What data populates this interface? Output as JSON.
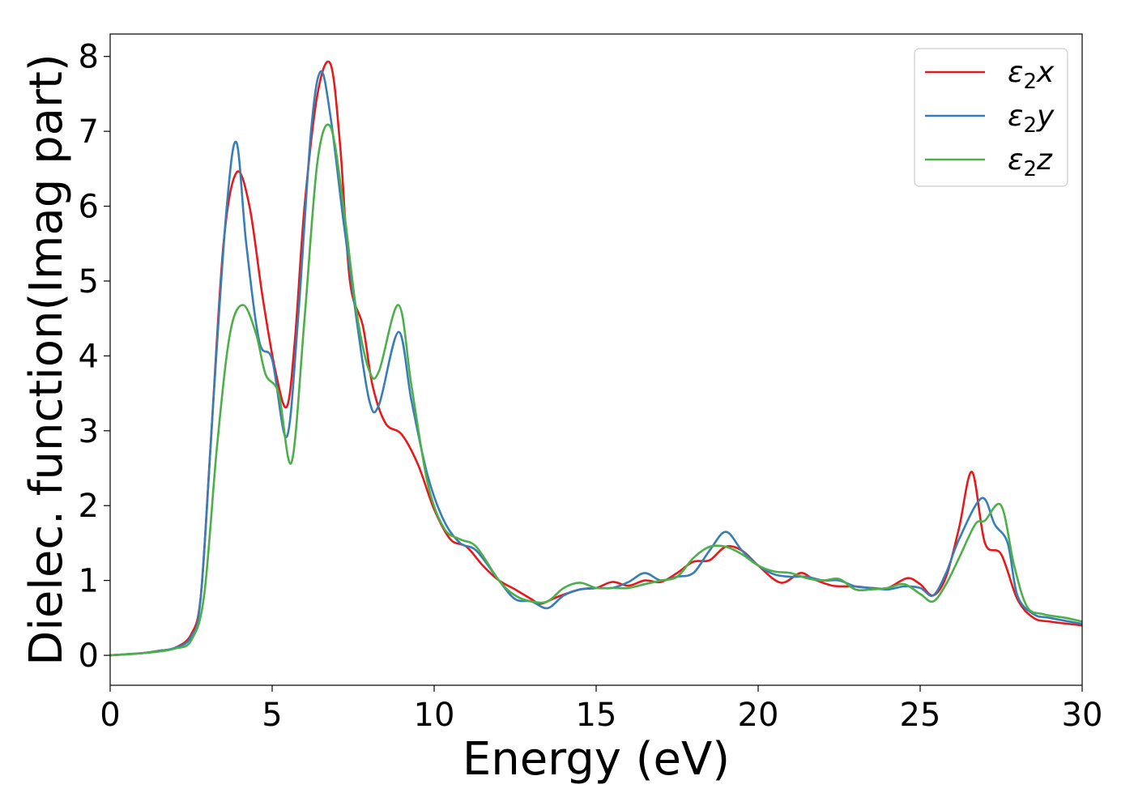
{
  "chart_data": {
    "type": "line",
    "title": "",
    "xlabel": "Energy (eV)",
    "ylabel": "Dielec. function(Imag part)",
    "xlim": [
      0,
      30
    ],
    "ylim": [
      -0.4,
      8.3
    ],
    "xticks": [
      0,
      5,
      10,
      15,
      20,
      25,
      30
    ],
    "yticks": [
      0,
      1,
      2,
      3,
      4,
      5,
      6,
      7,
      8
    ],
    "grid": false,
    "legend_position": "top-right",
    "series": [
      {
        "name": "ε₂x",
        "label_base": "ε",
        "label_sub": "2",
        "label_suffix": "x",
        "color": "#e41a1c",
        "points": [
          [
            0,
            0
          ],
          [
            1,
            0.03
          ],
          [
            1.5,
            0.06
          ],
          [
            2,
            0.1
          ],
          [
            2.5,
            0.28
          ],
          [
            2.8,
            0.8
          ],
          [
            3.1,
            2.8
          ],
          [
            3.5,
            5.5
          ],
          [
            3.9,
            6.45
          ],
          [
            4.3,
            6.0
          ],
          [
            4.7,
            4.8
          ],
          [
            5.1,
            3.8
          ],
          [
            5.45,
            3.32
          ],
          [
            5.7,
            4.2
          ],
          [
            6.0,
            6.0
          ],
          [
            6.4,
            7.5
          ],
          [
            6.8,
            7.9
          ],
          [
            7.1,
            6.8
          ],
          [
            7.4,
            5.0
          ],
          [
            7.8,
            4.4
          ],
          [
            8.1,
            3.6
          ],
          [
            8.5,
            3.1
          ],
          [
            9.0,
            2.95
          ],
          [
            9.5,
            2.55
          ],
          [
            10.0,
            1.95
          ],
          [
            10.5,
            1.55
          ],
          [
            11.0,
            1.45
          ],
          [
            11.5,
            1.2
          ],
          [
            12.0,
            1.0
          ],
          [
            12.5,
            0.88
          ],
          [
            13.0,
            0.75
          ],
          [
            13.3,
            0.69
          ],
          [
            13.8,
            0.78
          ],
          [
            14.5,
            0.88
          ],
          [
            15.0,
            0.9
          ],
          [
            15.5,
            0.98
          ],
          [
            16.0,
            0.93
          ],
          [
            16.5,
            1.0
          ],
          [
            17.0,
            0.98
          ],
          [
            17.5,
            1.1
          ],
          [
            18.0,
            1.25
          ],
          [
            18.5,
            1.27
          ],
          [
            19.0,
            1.45
          ],
          [
            19.5,
            1.4
          ],
          [
            20.0,
            1.2
          ],
          [
            20.7,
            0.97
          ],
          [
            21.3,
            1.1
          ],
          [
            21.7,
            1.02
          ],
          [
            22.3,
            0.93
          ],
          [
            23.0,
            0.92
          ],
          [
            23.5,
            0.9
          ],
          [
            24.0,
            0.9
          ],
          [
            24.6,
            1.03
          ],
          [
            25.0,
            0.95
          ],
          [
            25.4,
            0.8
          ],
          [
            25.8,
            1.05
          ],
          [
            26.2,
            1.7
          ],
          [
            26.6,
            2.45
          ],
          [
            27.0,
            1.5
          ],
          [
            27.5,
            1.35
          ],
          [
            28.0,
            0.75
          ],
          [
            28.5,
            0.5
          ],
          [
            29.0,
            0.45
          ],
          [
            30.0,
            0.4
          ]
        ]
      },
      {
        "name": "ε₂y",
        "label_base": "ε",
        "label_sub": "2",
        "label_suffix": "y",
        "color": "#377eb8",
        "points": [
          [
            0,
            0
          ],
          [
            1,
            0.03
          ],
          [
            1.5,
            0.06
          ],
          [
            2,
            0.1
          ],
          [
            2.5,
            0.25
          ],
          [
            2.8,
            0.8
          ],
          [
            3.2,
            3.5
          ],
          [
            3.6,
            6.0
          ],
          [
            3.9,
            6.85
          ],
          [
            4.2,
            5.5
          ],
          [
            4.6,
            4.2
          ],
          [
            5.0,
            3.95
          ],
          [
            5.45,
            2.92
          ],
          [
            5.8,
            4.5
          ],
          [
            6.2,
            7.0
          ],
          [
            6.5,
            7.8
          ],
          [
            6.8,
            7.2
          ],
          [
            7.2,
            5.8
          ],
          [
            7.6,
            4.5
          ],
          [
            8.0,
            3.4
          ],
          [
            8.3,
            3.35
          ],
          [
            8.9,
            4.32
          ],
          [
            9.3,
            3.4
          ],
          [
            9.8,
            2.4
          ],
          [
            10.3,
            1.8
          ],
          [
            10.8,
            1.5
          ],
          [
            11.3,
            1.4
          ],
          [
            12.0,
            1.0
          ],
          [
            12.5,
            0.75
          ],
          [
            13.0,
            0.72
          ],
          [
            13.5,
            0.63
          ],
          [
            14.0,
            0.8
          ],
          [
            14.5,
            0.88
          ],
          [
            15.0,
            0.9
          ],
          [
            15.5,
            0.9
          ],
          [
            16.0,
            0.98
          ],
          [
            16.5,
            1.1
          ],
          [
            17.0,
            1.0
          ],
          [
            17.5,
            1.05
          ],
          [
            18.0,
            1.1
          ],
          [
            18.5,
            1.4
          ],
          [
            19.0,
            1.65
          ],
          [
            19.5,
            1.4
          ],
          [
            20.0,
            1.2
          ],
          [
            20.5,
            1.08
          ],
          [
            21.0,
            1.05
          ],
          [
            21.5,
            1.05
          ],
          [
            22.0,
            1.0
          ],
          [
            22.5,
            1.0
          ],
          [
            23.0,
            0.92
          ],
          [
            23.5,
            0.9
          ],
          [
            24.0,
            0.88
          ],
          [
            24.5,
            0.92
          ],
          [
            25.0,
            0.9
          ],
          [
            25.4,
            0.8
          ],
          [
            25.8,
            1.1
          ],
          [
            26.2,
            1.55
          ],
          [
            26.9,
            2.1
          ],
          [
            27.3,
            1.75
          ],
          [
            27.7,
            1.5
          ],
          [
            28.0,
            0.8
          ],
          [
            28.5,
            0.55
          ],
          [
            29.0,
            0.5
          ],
          [
            30.0,
            0.42
          ]
        ]
      },
      {
        "name": "ε₂z",
        "label_base": "ε",
        "label_sub": "2",
        "label_suffix": "z",
        "color": "#4daf4a",
        "points": [
          [
            0,
            0
          ],
          [
            1,
            0.03
          ],
          [
            1.5,
            0.05
          ],
          [
            2,
            0.09
          ],
          [
            2.5,
            0.2
          ],
          [
            2.9,
            0.8
          ],
          [
            3.3,
            2.8
          ],
          [
            3.7,
            4.3
          ],
          [
            4.1,
            4.68
          ],
          [
            4.5,
            4.3
          ],
          [
            4.8,
            3.75
          ],
          [
            5.2,
            3.5
          ],
          [
            5.6,
            2.58
          ],
          [
            6.0,
            4.5
          ],
          [
            6.4,
            6.6
          ],
          [
            6.8,
            7.06
          ],
          [
            7.2,
            6.0
          ],
          [
            7.6,
            4.6
          ],
          [
            8.0,
            3.8
          ],
          [
            8.3,
            3.8
          ],
          [
            8.9,
            4.68
          ],
          [
            9.3,
            3.6
          ],
          [
            9.8,
            2.3
          ],
          [
            10.3,
            1.7
          ],
          [
            10.8,
            1.55
          ],
          [
            11.3,
            1.45
          ],
          [
            12.0,
            1.0
          ],
          [
            12.5,
            0.8
          ],
          [
            13.0,
            0.72
          ],
          [
            13.5,
            0.72
          ],
          [
            14.0,
            0.9
          ],
          [
            14.5,
            0.97
          ],
          [
            15.0,
            0.9
          ],
          [
            15.5,
            0.9
          ],
          [
            16.0,
            0.9
          ],
          [
            16.5,
            0.95
          ],
          [
            17.0,
            1.0
          ],
          [
            17.5,
            1.05
          ],
          [
            18.0,
            1.3
          ],
          [
            18.5,
            1.45
          ],
          [
            19.0,
            1.45
          ],
          [
            19.5,
            1.35
          ],
          [
            20.0,
            1.2
          ],
          [
            20.5,
            1.12
          ],
          [
            21.0,
            1.1
          ],
          [
            21.5,
            1.03
          ],
          [
            22.0,
            1.0
          ],
          [
            22.5,
            1.02
          ],
          [
            23.0,
            0.88
          ],
          [
            23.5,
            0.88
          ],
          [
            24.0,
            0.9
          ],
          [
            24.5,
            0.95
          ],
          [
            25.0,
            0.82
          ],
          [
            25.4,
            0.72
          ],
          [
            25.8,
            0.95
          ],
          [
            26.2,
            1.3
          ],
          [
            26.7,
            1.75
          ],
          [
            27.0,
            1.8
          ],
          [
            27.5,
            2.0
          ],
          [
            27.9,
            1.2
          ],
          [
            28.3,
            0.65
          ],
          [
            28.8,
            0.55
          ],
          [
            29.5,
            0.5
          ],
          [
            30.0,
            0.45
          ]
        ]
      }
    ]
  }
}
